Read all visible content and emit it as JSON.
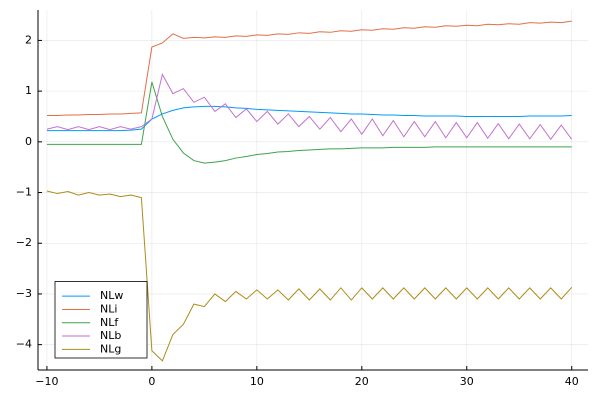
{
  "chart_data": {
    "type": "line",
    "x": [
      -10,
      -9,
      -8,
      -7,
      -6,
      -5,
      -4,
      -3,
      -2,
      -1,
      0,
      1,
      2,
      3,
      4,
      5,
      6,
      7,
      8,
      9,
      10,
      11,
      12,
      13,
      14,
      15,
      16,
      17,
      18,
      19,
      20,
      21,
      22,
      23,
      24,
      25,
      26,
      27,
      28,
      29,
      30,
      31,
      32,
      33,
      34,
      35,
      36,
      37,
      38,
      39,
      40
    ],
    "series": [
      {
        "name": "NLw",
        "color": "#009afa",
        "values": [
          0.22,
          0.22,
          0.22,
          0.22,
          0.22,
          0.22,
          0.22,
          0.22,
          0.23,
          0.25,
          0.45,
          0.55,
          0.62,
          0.67,
          0.69,
          0.7,
          0.7,
          0.69,
          0.67,
          0.66,
          0.64,
          0.63,
          0.62,
          0.61,
          0.6,
          0.59,
          0.58,
          0.57,
          0.56,
          0.55,
          0.55,
          0.54,
          0.53,
          0.53,
          0.52,
          0.52,
          0.51,
          0.51,
          0.51,
          0.51,
          0.5,
          0.5,
          0.5,
          0.5,
          0.5,
          0.5,
          0.51,
          0.51,
          0.51,
          0.51,
          0.52
        ]
      },
      {
        "name": "NLi",
        "color": "#e36f47",
        "values": [
          0.52,
          0.52,
          0.53,
          0.53,
          0.54,
          0.54,
          0.55,
          0.55,
          0.56,
          0.57,
          1.87,
          1.95,
          2.13,
          2.04,
          2.06,
          2.05,
          2.07,
          2.06,
          2.09,
          2.08,
          2.11,
          2.1,
          2.13,
          2.12,
          2.15,
          2.14,
          2.17,
          2.16,
          2.19,
          2.18,
          2.21,
          2.2,
          2.23,
          2.22,
          2.25,
          2.24,
          2.27,
          2.26,
          2.29,
          2.28,
          2.3,
          2.29,
          2.32,
          2.31,
          2.33,
          2.32,
          2.35,
          2.34,
          2.36,
          2.35,
          2.38
        ]
      },
      {
        "name": "NLf",
        "color": "#3ea44e",
        "values": [
          -0.05,
          -0.05,
          -0.05,
          -0.05,
          -0.05,
          -0.05,
          -0.05,
          -0.05,
          -0.05,
          -0.05,
          1.18,
          0.5,
          0.05,
          -0.22,
          -0.37,
          -0.42,
          -0.4,
          -0.37,
          -0.32,
          -0.29,
          -0.25,
          -0.23,
          -0.2,
          -0.19,
          -0.17,
          -0.16,
          -0.15,
          -0.14,
          -0.14,
          -0.13,
          -0.12,
          -0.12,
          -0.12,
          -0.11,
          -0.11,
          -0.11,
          -0.11,
          -0.1,
          -0.1,
          -0.1,
          -0.1,
          -0.1,
          -0.1,
          -0.1,
          -0.1,
          -0.1,
          -0.1,
          -0.1,
          -0.1,
          -0.1,
          -0.1
        ]
      },
      {
        "name": "NLb",
        "color": "#c271d2",
        "values": [
          0.25,
          0.3,
          0.24,
          0.3,
          0.24,
          0.3,
          0.24,
          0.3,
          0.25,
          0.3,
          0.45,
          1.33,
          0.95,
          1.05,
          0.78,
          0.88,
          0.6,
          0.75,
          0.48,
          0.65,
          0.4,
          0.6,
          0.35,
          0.55,
          0.3,
          0.5,
          0.25,
          0.48,
          0.2,
          0.45,
          0.15,
          0.45,
          0.12,
          0.42,
          0.1,
          0.4,
          0.1,
          0.4,
          0.08,
          0.38,
          0.08,
          0.38,
          0.07,
          0.36,
          0.06,
          0.35,
          0.06,
          0.34,
          0.05,
          0.33,
          0.05
        ]
      },
      {
        "name": "NLg",
        "color": "#ac8d18",
        "values": [
          -0.97,
          -1.02,
          -0.98,
          -1.05,
          -1.0,
          -1.05,
          -1.03,
          -1.08,
          -1.05,
          -1.1,
          -4.12,
          -4.32,
          -3.8,
          -3.6,
          -3.2,
          -3.25,
          -3.0,
          -3.15,
          -2.95,
          -3.1,
          -2.92,
          -3.1,
          -2.92,
          -3.12,
          -2.9,
          -3.12,
          -2.9,
          -3.12,
          -2.88,
          -3.12,
          -2.88,
          -3.1,
          -2.88,
          -3.1,
          -2.88,
          -3.1,
          -2.88,
          -3.1,
          -2.88,
          -3.1,
          -2.88,
          -3.1,
          -2.88,
          -3.1,
          -2.88,
          -3.1,
          -2.88,
          -3.1,
          -2.88,
          -3.1,
          -2.87
        ]
      }
    ],
    "xlim": [
      -10.85,
      41.55
    ],
    "ylim": [
      -4.5,
      2.6
    ],
    "xticks": [
      {
        "value": -10,
        "label": "−10"
      },
      0,
      10,
      20,
      30,
      40
    ],
    "yticks": [
      {
        "value": -4,
        "label": "−4"
      },
      {
        "value": -3,
        "label": "−3"
      },
      {
        "value": -2,
        "label": "−2"
      },
      {
        "value": -1,
        "label": "−1"
      },
      0,
      1,
      2
    ],
    "grid": true,
    "legend": "bottom-left"
  }
}
